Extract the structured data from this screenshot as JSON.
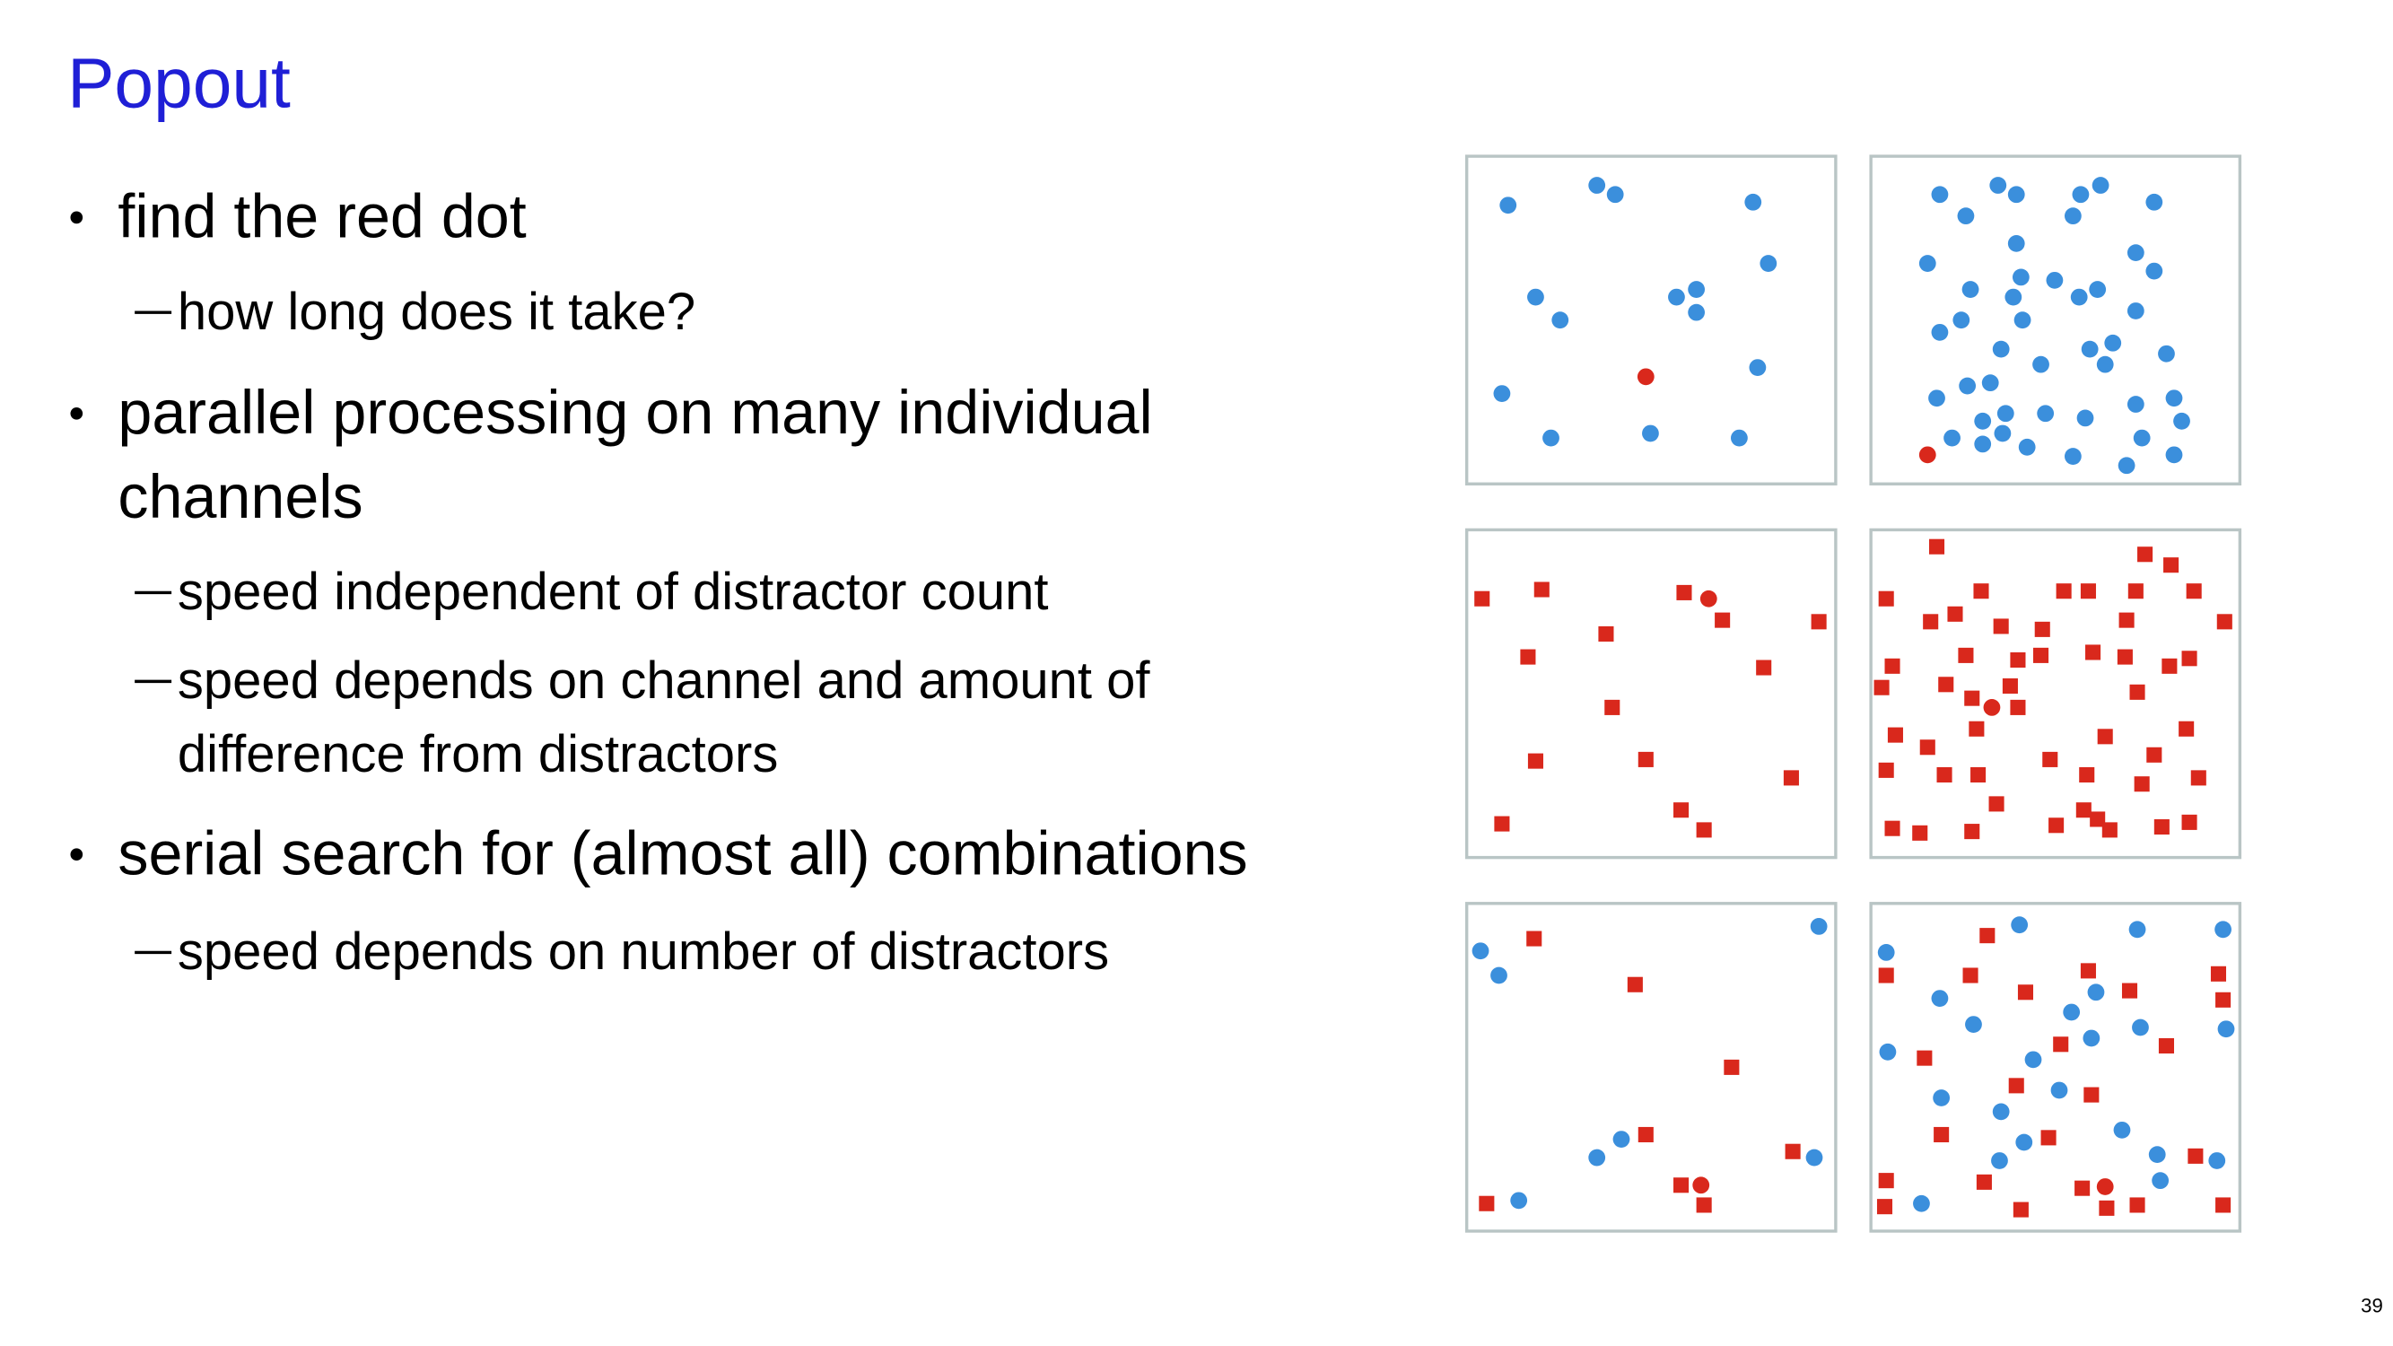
{
  "header": {
    "title": "Popout"
  },
  "bullets": [
    {
      "lines": [
        "find the red dot"
      ],
      "subs": [
        {
          "lines": [
            "how long does it take?"
          ]
        }
      ]
    },
    {
      "lines": [
        "parallel processing on many individual",
        "channels"
      ],
      "subs": [
        {
          "lines": [
            "speed independent of distractor count"
          ]
        },
        {
          "lines": [
            "speed depends on channel and amount of",
            "difference from distractors"
          ]
        }
      ]
    },
    {
      "lines": [
        "serial search for (almost all) combinations"
      ],
      "subs": [
        {
          "lines": [
            "speed depends on number of distractors"
          ]
        }
      ]
    }
  ],
  "footer": {
    "page_number": "39"
  }
}
